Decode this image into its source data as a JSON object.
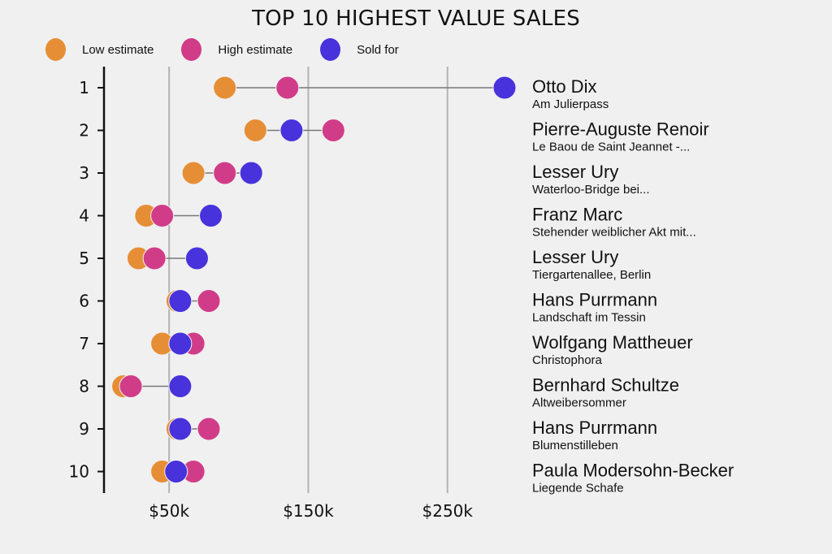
{
  "chart_data": {
    "type": "scatter",
    "subtype": "dot-plot",
    "title": "TOP 10 HIGHEST VALUE SALES",
    "xlabel": "",
    "ylabel": "",
    "xlim": [
      0,
      300000
    ],
    "x_ticks": [
      {
        "value": 50000,
        "label": "$50k"
      },
      {
        "value": 150000,
        "label": "$150k"
      },
      {
        "value": 250000,
        "label": "$250k"
      }
    ],
    "grid": "vertical at ticks",
    "legend_position": "top-left",
    "series": [
      {
        "key": "low",
        "name": "Low estimate",
        "color": "#E68E35"
      },
      {
        "key": "high",
        "name": "High estimate",
        "color": "#D13C88"
      },
      {
        "key": "sold",
        "name": "Sold for",
        "color": "#4732DC"
      }
    ],
    "rows": [
      {
        "rank": "1",
        "artist": "Otto Dix",
        "work": "Am Julierpass",
        "low": 90000,
        "high": 135000,
        "sold": 291000
      },
      {
        "rank": "2",
        "artist": "Pierre-Auguste Renoir",
        "work": "Le Baou de Saint Jeannet -...",
        "low": 112000,
        "high": 168000,
        "sold": 138000
      },
      {
        "rank": "3",
        "artist": "Lesser Ury",
        "work": "Waterloo-Bridge bei...",
        "low": 67500,
        "high": 90000,
        "sold": 109000
      },
      {
        "rank": "4",
        "artist": "Franz Marc",
        "work": "Stehender weiblicher Akt mit...",
        "low": 33500,
        "high": 45000,
        "sold": 80000
      },
      {
        "rank": "5",
        "artist": "Lesser Ury",
        "work": "Tiergartenallee, Berlin",
        "low": 28000,
        "high": 39500,
        "sold": 70000
      },
      {
        "rank": "6",
        "artist": "Hans Purrmann",
        "work": "Landschaft im Tessin",
        "low": 56000,
        "high": 78500,
        "sold": 58000
      },
      {
        "rank": "7",
        "artist": "Wolfgang Mattheuer",
        "work": "Christophora",
        "low": 45000,
        "high": 67500,
        "sold": 58000
      },
      {
        "rank": "8",
        "artist": "Bernhard Schultze",
        "work": "Altweibersommer",
        "low": 17000,
        "high": 22500,
        "sold": 58000
      },
      {
        "rank": "9",
        "artist": "Hans Purrmann",
        "work": "Blumenstilleben",
        "low": 56000,
        "high": 78500,
        "sold": 58000
      },
      {
        "rank": "10",
        "artist": "Paula Modersohn-Becker",
        "work": "Liegende Schafe",
        "low": 45000,
        "high": 67500,
        "sold": 55000
      }
    ]
  }
}
